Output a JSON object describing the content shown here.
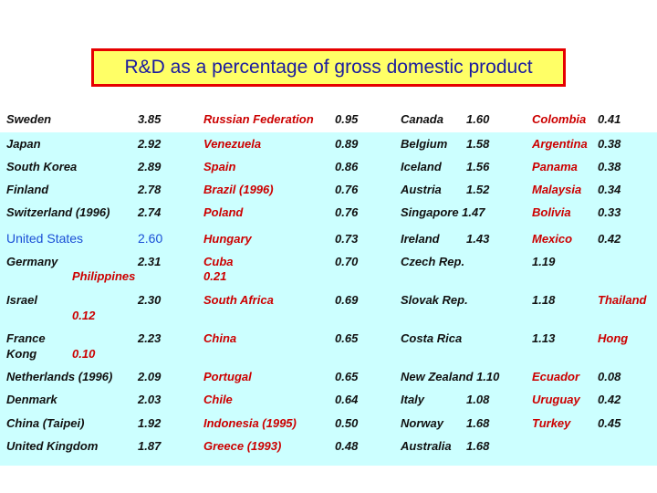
{
  "title": "R&D as a percentage of gross domestic product",
  "colors": {
    "title_bg": "#ffff66",
    "title_border": "#e60000",
    "title_text": "#1a1aa0",
    "band_bg": "#ccffff",
    "highlight_red": "#cc0000",
    "highlight_blue": "#1a4fd6"
  },
  "rows": [
    {
      "c1": "Sweden",
      "v1": "3.85",
      "c2": "Russian Federation",
      "v2": "0.95",
      "c3": "Canada",
      "v3": "1.60",
      "c4": "Colombia",
      "v4": "0.41"
    },
    {
      "c1": "Japan",
      "v1": "2.92",
      "c2": "Venezuela",
      "v2": "0.89",
      "c3": "Belgium",
      "v3": "1.58",
      "c4": "Argentina",
      "v4": "0.38"
    },
    {
      "c1": "South Korea",
      "v1": "2.89",
      "c2": "Spain",
      "v2": "0.86",
      "c3": "Iceland",
      "v3": "1.56",
      "c4": "Panama",
      "v4": "0.38"
    },
    {
      "c1": "Finland",
      "v1": "2.78",
      "c2": "Brazil (1996)",
      "v2": "0.76",
      "c3": "Austria",
      "v3": "1.52",
      "c4": "Malaysia",
      "v4": "0.34"
    },
    {
      "c1": "Switzerland (1996)",
      "v1": "2.74",
      "c2": "Poland",
      "v2": "0.76",
      "c3": "Singapore 1.47",
      "v3": "",
      "c4": "Bolivia",
      "v4": "0.33"
    },
    {
      "c1": "United States",
      "v1": "2.60",
      "c2": "Hungary",
      "v2": "0.73",
      "c3": "Ireland",
      "v3": "1.43",
      "c4": "Mexico",
      "v4": "0.42"
    },
    {
      "c1": "Germany",
      "v1": "2.31",
      "c2": "Cuba",
      "v2": "0.70",
      "c3": "Czech Rep.",
      "v3": "1.19",
      "c4": "",
      "v4": ""
    },
    {
      "c1": "Israel",
      "v1": "2.30",
      "c2": "South Africa",
      "v2": "0.69",
      "c3": "Slovak Rep.",
      "v3": "1.18",
      "c4": "Thailand",
      "v4": ""
    },
    {
      "c1": "France",
      "v1": "2.23",
      "c2": "China",
      "v2": "0.65",
      "c3": "Costa Rica",
      "v3": "1.13",
      "c4": "Hong",
      "v4": ""
    },
    {
      "c1": "Netherlands (1996)",
      "v1": "2.09",
      "c2": "Portugal",
      "v2": "0.65",
      "c3": "New Zealand 1.10",
      "v3": "",
      "c4": "Ecuador",
      "v4": "0.08"
    },
    {
      "c1": "Denmark",
      "v1": "2.03",
      "c2": "Chile",
      "v2": "0.64",
      "c3": "Italy",
      "v3": "1.08",
      "c4": "Uruguay",
      "v4": "0.42"
    },
    {
      "c1": "China (Taipei)",
      "v1": "1.92",
      "c2": "Indonesia (1995)",
      "v2": "0.50",
      "c3": "Norway",
      "v3": "1.68",
      "c4": "Turkey",
      "v4": "0.45"
    },
    {
      "c1": "United Kingdom",
      "v1": "1.87",
      "c2": "Greece (1993)",
      "v2": "0.48",
      "c3": "Australia",
      "v3": "1.68",
      "c4": "",
      "v4": ""
    }
  ],
  "extras": {
    "philippines": "Philippines",
    "cuba_value": "0.21",
    "thailand_value": "0.12",
    "kong": "Kong",
    "hong_value": "0.10"
  }
}
